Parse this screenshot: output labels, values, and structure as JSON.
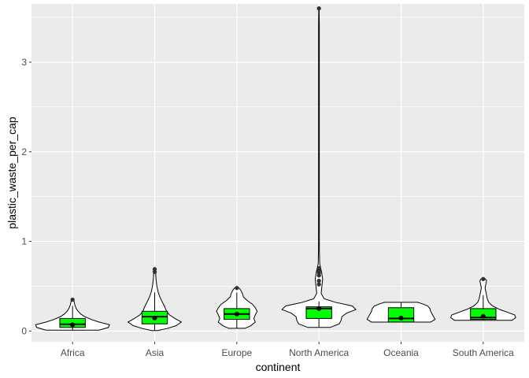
{
  "chart_data": {
    "type": "violin+box",
    "xlabel": "continent",
    "ylabel": "plastic_waste_per_cap",
    "ylim": [
      -0.12,
      3.65
    ],
    "y_ticks": [
      0,
      1,
      2,
      3
    ],
    "y_tick_labels": [
      "0",
      "1",
      "2",
      "3"
    ],
    "grid": true,
    "colors": {
      "panel": "#EBEBEB",
      "grid": "#FFFFFF",
      "box_fill": "#00FF00",
      "violin_fill": "#FFFFFF",
      "outline": "#000000",
      "outlier": "#333333"
    },
    "categories": [
      "Africa",
      "Asia",
      "Europe",
      "North America",
      "Oceania",
      "South America"
    ],
    "groups": [
      {
        "name": "Africa",
        "box": {
          "q1": 0.04,
          "median": 0.075,
          "q3": 0.14,
          "mean": 0.07
        },
        "whisker": [
          0.01,
          0.28
        ],
        "outliers": [
          0.35
        ],
        "violin_min": 0.01,
        "violin_max": 0.35,
        "density": [
          [
            0.01,
            0.72
          ],
          [
            0.04,
            0.97
          ],
          [
            0.07,
            1.0
          ],
          [
            0.1,
            0.72
          ],
          [
            0.13,
            0.5
          ],
          [
            0.16,
            0.33
          ],
          [
            0.19,
            0.22
          ],
          [
            0.22,
            0.15
          ],
          [
            0.25,
            0.1
          ],
          [
            0.28,
            0.07
          ],
          [
            0.31,
            0.05
          ],
          [
            0.33,
            0.04
          ],
          [
            0.35,
            0.03
          ]
        ]
      },
      {
        "name": "Asia",
        "box": {
          "q1": 0.08,
          "median": 0.16,
          "q3": 0.22,
          "mean": 0.145
        },
        "whisker": [
          0.005,
          0.43
        ],
        "outliers": [
          0.66,
          0.69
        ],
        "violin_min": 0.005,
        "violin_max": 0.69,
        "density": [
          [
            0.005,
            0.08
          ],
          [
            0.03,
            0.35
          ],
          [
            0.06,
            0.58
          ],
          [
            0.1,
            0.72
          ],
          [
            0.14,
            0.55
          ],
          [
            0.18,
            0.4
          ],
          [
            0.22,
            0.32
          ],
          [
            0.27,
            0.27
          ],
          [
            0.32,
            0.21
          ],
          [
            0.38,
            0.14
          ],
          [
            0.44,
            0.09
          ],
          [
            0.5,
            0.06
          ],
          [
            0.56,
            0.04
          ],
          [
            0.62,
            0.03
          ],
          [
            0.66,
            0.03
          ],
          [
            0.69,
            0.02
          ]
        ]
      },
      {
        "name": "Europe",
        "box": {
          "q1": 0.13,
          "median": 0.19,
          "q3": 0.25,
          "mean": 0.19
        },
        "whisker": [
          0.03,
          0.43
        ],
        "outliers": [
          0.48
        ],
        "violin_min": 0.03,
        "violin_max": 0.48,
        "density": [
          [
            0.03,
            0.22
          ],
          [
            0.06,
            0.38
          ],
          [
            0.1,
            0.5
          ],
          [
            0.14,
            0.46
          ],
          [
            0.18,
            0.5
          ],
          [
            0.22,
            0.55
          ],
          [
            0.26,
            0.5
          ],
          [
            0.3,
            0.42
          ],
          [
            0.34,
            0.28
          ],
          [
            0.38,
            0.18
          ],
          [
            0.42,
            0.15
          ],
          [
            0.46,
            0.1
          ],
          [
            0.48,
            0.06
          ]
        ]
      },
      {
        "name": "North America",
        "box": {
          "q1": 0.14,
          "median": 0.25,
          "q3": 0.27,
          "mean": 0.25
        },
        "whisker": [
          0.04,
          0.33
        ],
        "outliers": [
          0.52,
          0.56,
          0.62,
          0.65,
          0.67,
          0.7,
          3.6
        ],
        "violin_min": 0.04,
        "violin_max": 3.6,
        "density": [
          [
            0.04,
            0.3
          ],
          [
            0.08,
            0.55
          ],
          [
            0.12,
            0.6
          ],
          [
            0.16,
            0.62
          ],
          [
            0.2,
            0.75
          ],
          [
            0.24,
            1.0
          ],
          [
            0.28,
            0.9
          ],
          [
            0.32,
            0.45
          ],
          [
            0.36,
            0.14
          ],
          [
            0.42,
            0.06
          ],
          [
            0.5,
            0.08
          ],
          [
            0.58,
            0.1
          ],
          [
            0.66,
            0.07
          ],
          [
            0.75,
            0.02
          ],
          [
            0.9,
            0.012
          ],
          [
            1.5,
            0.01
          ],
          [
            2.5,
            0.01
          ],
          [
            3.4,
            0.01
          ],
          [
            3.6,
            0.005
          ]
        ]
      },
      {
        "name": "Oceania",
        "box": {
          "q1": 0.1,
          "median": 0.14,
          "q3": 0.26,
          "mean": 0.145
        },
        "whisker": [
          0.1,
          0.32
        ],
        "outliers": [],
        "violin_min": 0.1,
        "violin_max": 0.32,
        "density": [
          [
            0.1,
            0.8
          ],
          [
            0.13,
            0.92
          ],
          [
            0.16,
            0.88
          ],
          [
            0.19,
            0.84
          ],
          [
            0.22,
            0.8
          ],
          [
            0.25,
            0.78
          ],
          [
            0.28,
            0.72
          ],
          [
            0.3,
            0.6
          ],
          [
            0.32,
            0.45
          ]
        ]
      },
      {
        "name": "South America",
        "box": {
          "q1": 0.13,
          "median": 0.15,
          "q3": 0.25,
          "mean": 0.165
        },
        "whisker": [
          0.12,
          0.4
        ],
        "outliers": [
          0.58
        ],
        "violin_min": 0.12,
        "violin_max": 0.58,
        "density": [
          [
            0.12,
            0.78
          ],
          [
            0.15,
            0.88
          ],
          [
            0.18,
            0.85
          ],
          [
            0.21,
            0.65
          ],
          [
            0.24,
            0.45
          ],
          [
            0.28,
            0.25
          ],
          [
            0.32,
            0.15
          ],
          [
            0.36,
            0.11
          ],
          [
            0.4,
            0.09
          ],
          [
            0.44,
            0.07
          ],
          [
            0.48,
            0.05
          ],
          [
            0.52,
            0.07
          ],
          [
            0.56,
            0.09
          ],
          [
            0.58,
            0.06
          ]
        ]
      }
    ]
  }
}
